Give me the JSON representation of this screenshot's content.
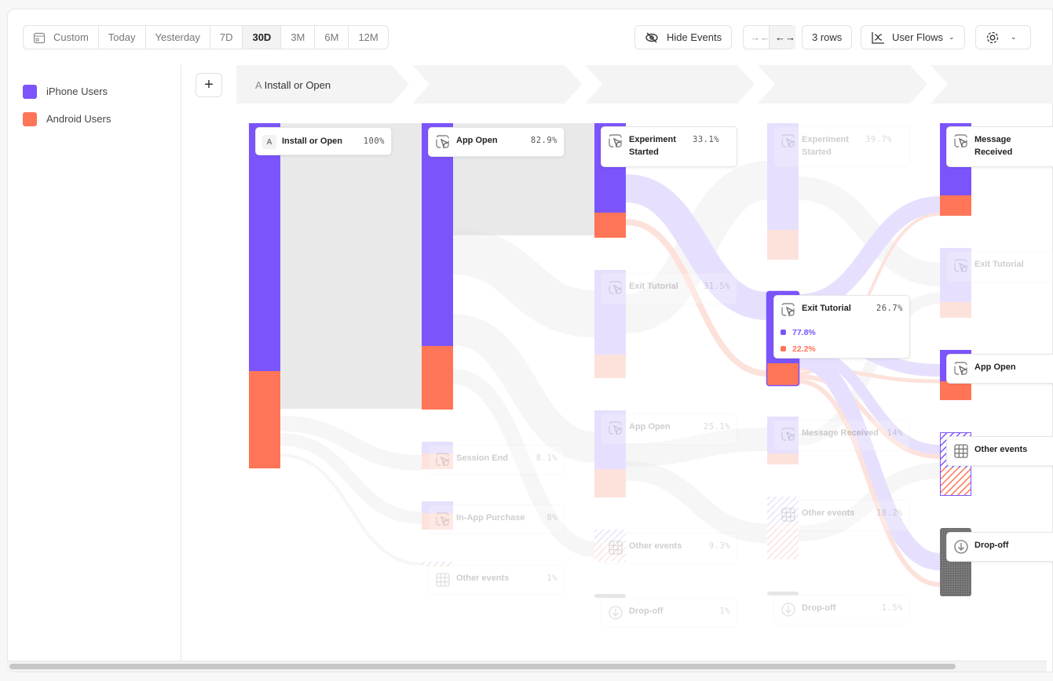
{
  "toolbar": {
    "date_ranges": [
      "Custom",
      "Today",
      "Yesterday",
      "7D",
      "30D",
      "3M",
      "6M",
      "12M"
    ],
    "selected_range": "30D",
    "hide_events": "Hide Events",
    "rows": "3 rows",
    "view": "User Flows",
    "icons": {
      "custom": "calendar-icon",
      "hide": "eye-off-icon",
      "collapse": "arrows-in-icon",
      "expand": "arrows-out-icon",
      "view": "flow-chart-icon",
      "settings": "gear-icon"
    }
  },
  "legend": [
    {
      "label": "iPhone Users",
      "color": "#7b55fb"
    },
    {
      "label": "Android Users",
      "color": "#ff7557"
    }
  ],
  "colors": {
    "iphone": "#7b55fb",
    "android": "#ff7557",
    "iphone_faded": "#e6e0fe",
    "android_faded": "#fde2dc",
    "dropoff": "#7a7a7a"
  },
  "add_step": "+",
  "steps": [
    {
      "letter": "A",
      "label": "Install or Open"
    },
    {
      "label": ""
    },
    {
      "label": ""
    },
    {
      "label": ""
    },
    {
      "label": ""
    }
  ],
  "chart_data": {
    "type": "sankey",
    "columns": [
      {
        "nodes": [
          {
            "label": "Install or Open",
            "percent": "100%",
            "icon": "letter-a",
            "state": "active"
          }
        ]
      },
      {
        "nodes": [
          {
            "label": "App Open",
            "percent": "82.9%",
            "icon": "event",
            "state": "active"
          },
          {
            "label": "Session End",
            "percent": "8.1%",
            "icon": "event",
            "state": "faded"
          },
          {
            "label": "In-App Purchase",
            "percent": "8%",
            "icon": "event",
            "state": "faded"
          },
          {
            "label": "Other events",
            "percent": "1%",
            "icon": "grid",
            "state": "faded"
          }
        ]
      },
      {
        "nodes": [
          {
            "label": "Experiment Started",
            "percent": "33.1%",
            "icon": "event",
            "state": "active"
          },
          {
            "label": "Exit Tutorial",
            "percent": "31.5%",
            "icon": "event",
            "state": "faded"
          },
          {
            "label": "App Open",
            "percent": "25.1%",
            "icon": "event",
            "state": "faded"
          },
          {
            "label": "Other events",
            "percent": "9.3%",
            "icon": "grid",
            "state": "faded"
          },
          {
            "label": "Drop-off",
            "percent": "1%",
            "icon": "dropoff",
            "state": "faded"
          }
        ]
      },
      {
        "nodes": [
          {
            "label": "Experiment Started",
            "percent": "39.7%",
            "icon": "event",
            "state": "faded"
          },
          {
            "label": "Exit Tutorial",
            "percent": "26.7%",
            "icon": "event",
            "state": "highlighted",
            "breakdown": [
              "77.8%",
              "22.2%"
            ]
          },
          {
            "label": "Message Received",
            "percent": "14%",
            "icon": "event",
            "state": "faded"
          },
          {
            "label": "Other events",
            "percent": "18.2%",
            "icon": "grid",
            "state": "faded"
          },
          {
            "label": "Drop-off",
            "percent": "1.5%",
            "icon": "dropoff",
            "state": "faded"
          }
        ]
      },
      {
        "nodes": [
          {
            "label": "Message Received",
            "percent": "",
            "icon": "event",
            "state": "active"
          },
          {
            "label": "Exit Tutorial",
            "percent": "",
            "icon": "event",
            "state": "faded"
          },
          {
            "label": "App Open",
            "percent": "",
            "icon": "event",
            "state": "active"
          },
          {
            "label": "Other events",
            "percent": "",
            "icon": "grid",
            "state": "active"
          },
          {
            "label": "Drop-off",
            "percent": "",
            "icon": "dropoff",
            "state": "active"
          }
        ]
      }
    ]
  }
}
